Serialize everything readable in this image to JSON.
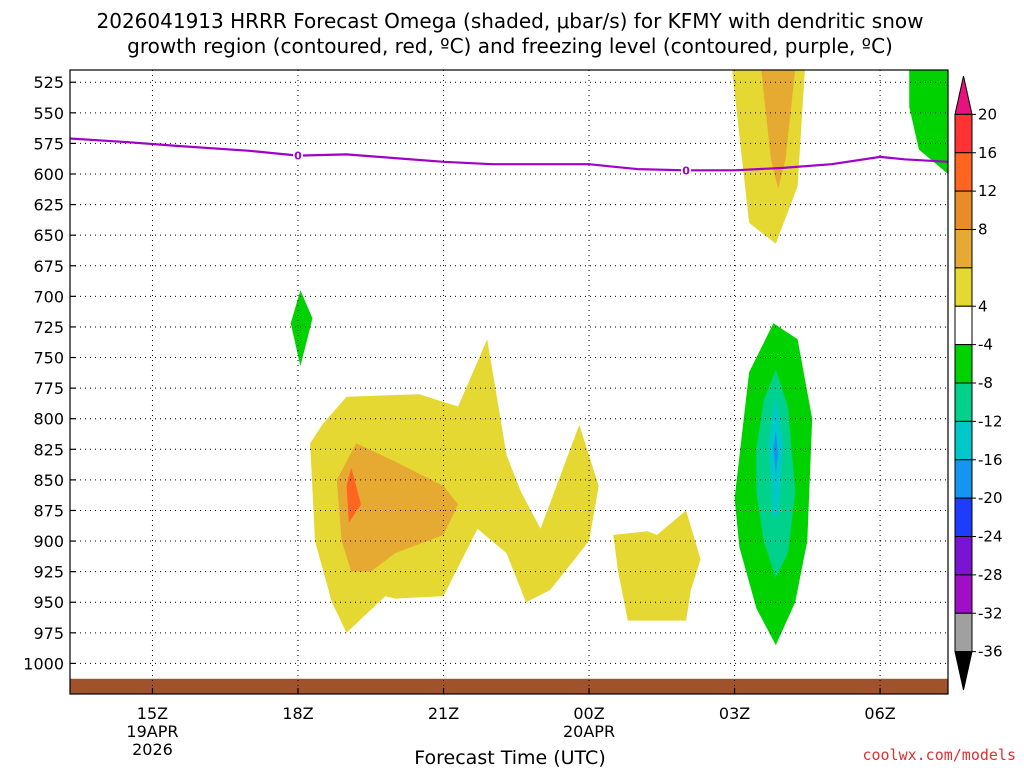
{
  "chart_data": {
    "type": "contour",
    "title_line1": "2026041913 HRRR Forecast Omega (shaded, μbar/s) for KFMY with dendritic snow",
    "title_line2": "growth region (contoured, red, ºC) and freezing level (contoured, purple, ºC)",
    "xlabel": "Forecast Time (UTC)",
    "credit": "coolwx.com/models",
    "x_range_hours": [
      13.3,
      31.4
    ],
    "y_range_hpa": [
      515,
      1025
    ],
    "y_ticks": [
      525,
      550,
      575,
      600,
      625,
      650,
      675,
      700,
      725,
      750,
      775,
      800,
      825,
      850,
      875,
      900,
      925,
      950,
      975,
      1000
    ],
    "x_ticks": [
      {
        "hour": 15,
        "label": "15Z",
        "date": "19APR",
        "year": "2026"
      },
      {
        "hour": 18,
        "label": "18Z",
        "date": "",
        "year": ""
      },
      {
        "hour": 21,
        "label": "21Z",
        "date": "",
        "year": ""
      },
      {
        "hour": 24,
        "label": "00Z",
        "date": "20APR",
        "year": ""
      },
      {
        "hour": 27,
        "label": "03Z",
        "date": "",
        "year": ""
      },
      {
        "hour": 30,
        "label": "06Z",
        "date": "",
        "year": ""
      }
    ],
    "colorbar": {
      "colors": [
        "#e8127e",
        "#ff3333",
        "#ff6420",
        "#e88c28",
        "#e6aa32",
        "#e6d832",
        "#ffffff",
        "#00d200",
        "#00d28c",
        "#00c8c8",
        "#1496f0",
        "#1e3cff",
        "#7814d2",
        "#a00fc8",
        "#a0a0a0",
        "#000000"
      ],
      "labels": [
        "20",
        "16",
        "12",
        "8",
        "4",
        "-4",
        "-8",
        "-12",
        "-16",
        "-20",
        "-24",
        "-28",
        "-32",
        "-36"
      ]
    },
    "freezing_level": {
      "color": "#a000c8",
      "label": "0",
      "points": [
        [
          13.3,
          571
        ],
        [
          14.5,
          574
        ],
        [
          15.5,
          577
        ],
        [
          17,
          581
        ],
        [
          18,
          585
        ],
        [
          19,
          584
        ],
        [
          20,
          587
        ],
        [
          21,
          590
        ],
        [
          22,
          592
        ],
        [
          23,
          592
        ],
        [
          24,
          592
        ],
        [
          24.5,
          594
        ],
        [
          25,
          596
        ],
        [
          26,
          597
        ],
        [
          27,
          597
        ],
        [
          28,
          595
        ],
        [
          29,
          592
        ],
        [
          30,
          586
        ],
        [
          30.5,
          588
        ],
        [
          31.4,
          590
        ]
      ],
      "label_positions": [
        [
          18,
          585
        ],
        [
          26,
          597
        ]
      ]
    },
    "omega_regions": [
      {
        "name": "upper-yellow-4",
        "color": "#e6d832",
        "value": 4,
        "points": [
          [
            26.95,
            515
          ],
          [
            27.3,
            640
          ],
          [
            27.85,
            657
          ],
          [
            28.3,
            610
          ],
          [
            28.45,
            515
          ]
        ]
      },
      {
        "name": "upper-orange-8",
        "color": "#e6aa32",
        "value": 8,
        "points": [
          [
            27.55,
            515
          ],
          [
            27.75,
            588
          ],
          [
            27.9,
            612
          ],
          [
            28.05,
            588
          ],
          [
            28.25,
            515
          ]
        ]
      },
      {
        "name": "upper-green-m4",
        "color": "#00d200",
        "value": -4,
        "points": [
          [
            30.6,
            515
          ],
          [
            31.4,
            515
          ],
          [
            31.4,
            600
          ],
          [
            30.8,
            580
          ],
          [
            30.6,
            545
          ]
        ]
      },
      {
        "name": "small-green-m4",
        "color": "#00d200",
        "value": -4,
        "points": [
          [
            17.85,
            722
          ],
          [
            18.05,
            695
          ],
          [
            18.3,
            718
          ],
          [
            18.05,
            757
          ]
        ]
      },
      {
        "name": "lower-green-m4",
        "color": "#00d200",
        "value": -4,
        "points": [
          [
            27,
            865
          ],
          [
            27.3,
            762
          ],
          [
            27.8,
            722
          ],
          [
            28.3,
            735
          ],
          [
            28.6,
            800
          ],
          [
            28.5,
            900
          ],
          [
            28.25,
            950
          ],
          [
            27.85,
            985
          ],
          [
            27.45,
            955
          ],
          [
            27.1,
            905
          ]
        ]
      },
      {
        "name": "lower-teal-m8",
        "color": "#00d28c",
        "value": -8,
        "points": [
          [
            27.45,
            825
          ],
          [
            27.6,
            785
          ],
          [
            27.85,
            760
          ],
          [
            28.1,
            790
          ],
          [
            28.25,
            860
          ],
          [
            28.1,
            910
          ],
          [
            27.85,
            930
          ],
          [
            27.6,
            900
          ],
          [
            27.45,
            860
          ]
        ]
      },
      {
        "name": "lower-cyan-m12",
        "color": "#00c8c8",
        "value": -12,
        "points": [
          [
            27.7,
            820
          ],
          [
            27.85,
            780
          ],
          [
            28.0,
            820
          ],
          [
            27.9,
            880
          ],
          [
            27.8,
            880
          ]
        ]
      },
      {
        "name": "lower-blue-m16",
        "color": "#1496f0",
        "value": -16,
        "points": [
          [
            27.8,
            825
          ],
          [
            27.85,
            810
          ],
          [
            27.9,
            830
          ],
          [
            27.85,
            845
          ]
        ]
      },
      {
        "name": "main-yellow-4",
        "color": "#e6d832",
        "value": 4,
        "points": [
          [
            18.25,
            820
          ],
          [
            18.5,
            805
          ],
          [
            19.0,
            782
          ],
          [
            20.5,
            780
          ],
          [
            21.3,
            790
          ],
          [
            21.9,
            735
          ],
          [
            22.3,
            830
          ],
          [
            22.6,
            860
          ],
          [
            23.0,
            890
          ],
          [
            23.8,
            805
          ],
          [
            24.2,
            855
          ],
          [
            24.0,
            900
          ],
          [
            23.7,
            915
          ],
          [
            23.2,
            940
          ],
          [
            22.7,
            950
          ],
          [
            22.3,
            910
          ],
          [
            21.7,
            890
          ],
          [
            21.0,
            945
          ],
          [
            20.0,
            947
          ],
          [
            19.8,
            945
          ],
          [
            19.0,
            975
          ],
          [
            18.7,
            950
          ],
          [
            18.35,
            900
          ]
        ]
      },
      {
        "name": "main-orange-8",
        "color": "#e6aa32",
        "value": 8,
        "points": [
          [
            18.8,
            850
          ],
          [
            19.2,
            820
          ],
          [
            20.0,
            835
          ],
          [
            21.0,
            855
          ],
          [
            21.3,
            870
          ],
          [
            21.0,
            895
          ],
          [
            20.0,
            910
          ],
          [
            19.5,
            925
          ],
          [
            19.1,
            925
          ],
          [
            18.9,
            900
          ]
        ]
      },
      {
        "name": "main-red-12",
        "color": "#ff6420",
        "value": 12,
        "points": [
          [
            19.0,
            855
          ],
          [
            19.1,
            840
          ],
          [
            19.3,
            870
          ],
          [
            19.05,
            885
          ]
        ]
      },
      {
        "name": "right-yellow-4",
        "color": "#e6d832",
        "value": 4,
        "points": [
          [
            24.5,
            895
          ],
          [
            25.2,
            892
          ],
          [
            25.4,
            895
          ],
          [
            26.0,
            875
          ],
          [
            26.3,
            915
          ],
          [
            26.1,
            940
          ],
          [
            26.0,
            965
          ],
          [
            24.8,
            965
          ],
          [
            24.6,
            925
          ]
        ]
      }
    ],
    "ground": {
      "color": "#a0522d",
      "value_hpa": 1015
    }
  }
}
